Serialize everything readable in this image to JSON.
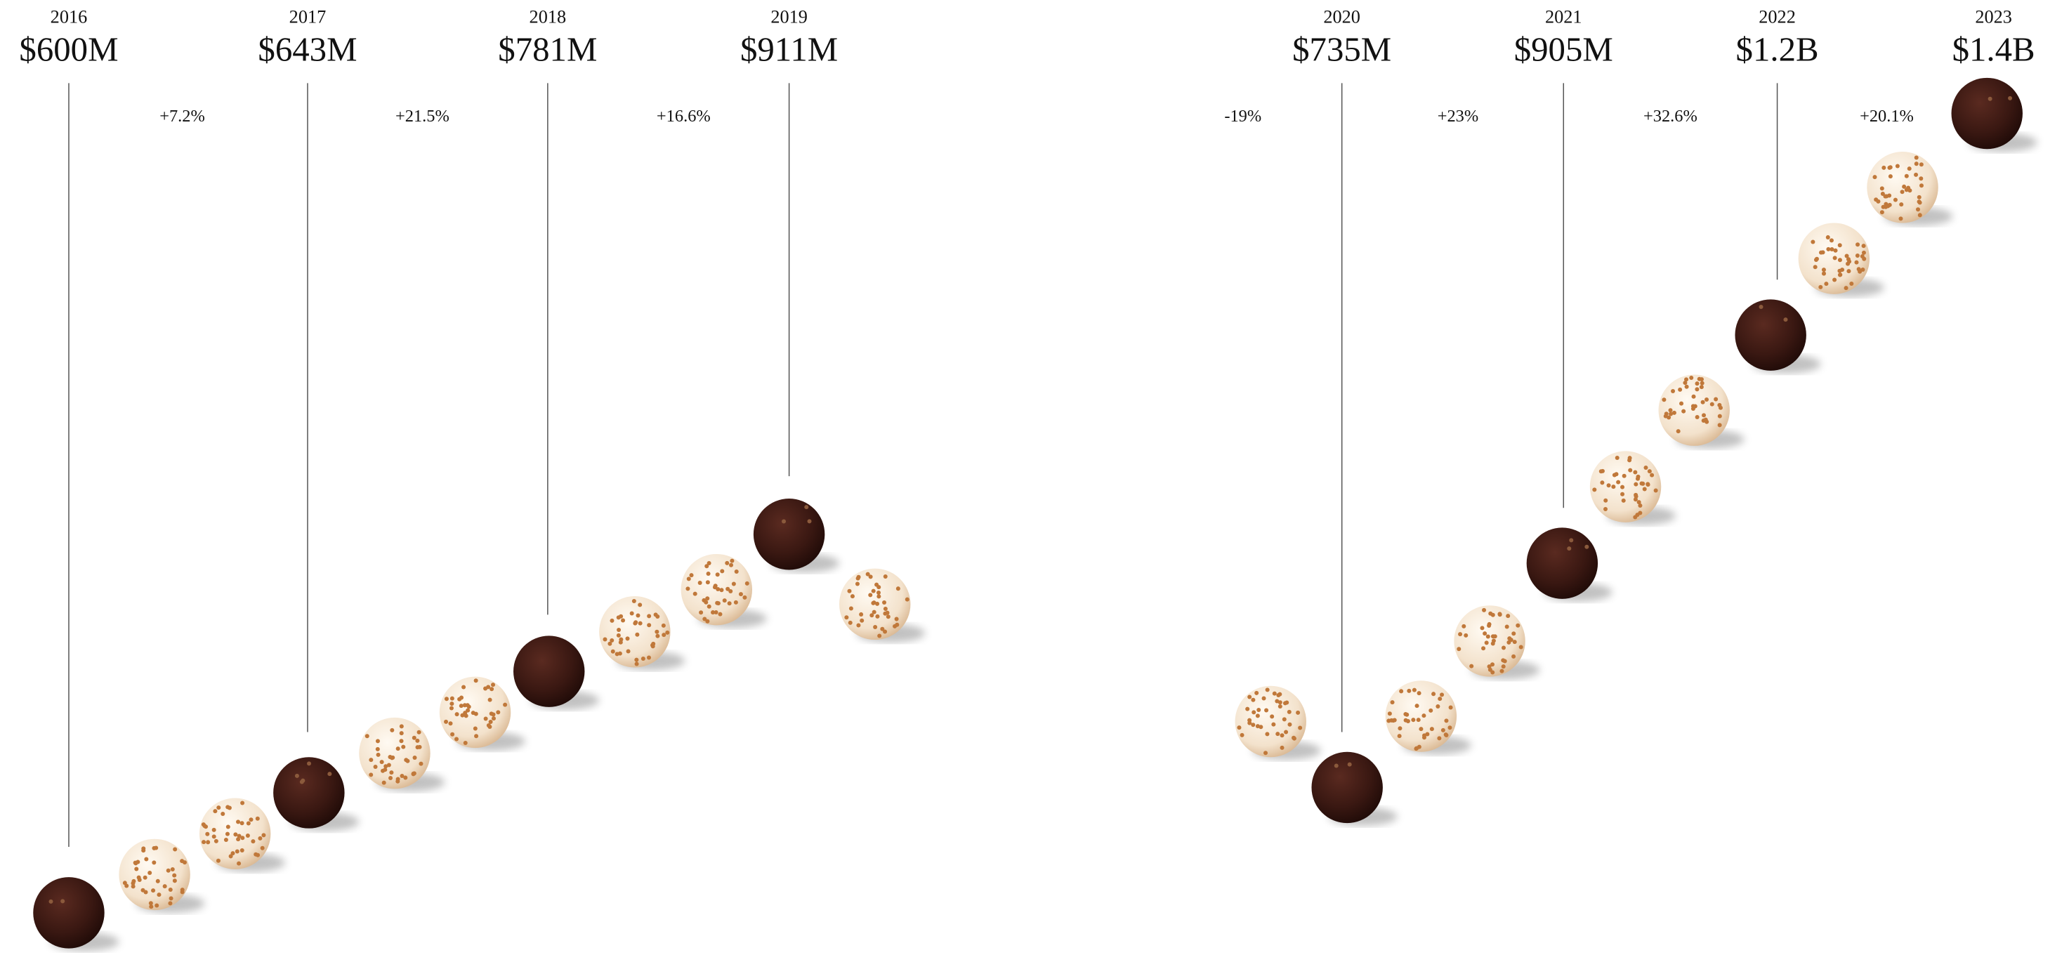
{
  "years": [
    {
      "year": "2016",
      "value": "$600M"
    },
    {
      "year": "2017",
      "value": "$643M"
    },
    {
      "year": "2018",
      "value": "$781M"
    },
    {
      "year": "2019",
      "value": "$911M"
    },
    {
      "year": "2020",
      "value": "$735M"
    },
    {
      "year": "2021",
      "value": "$905M"
    },
    {
      "year": "2022",
      "value": "$1.2B"
    },
    {
      "year": "2023",
      "value": "$1.4B"
    }
  ],
  "changes": [
    "+7.2%",
    "+21.5%",
    "+16.6%",
    "-19%",
    "+23%",
    "+32.6%",
    "+20.1%"
  ]
}
